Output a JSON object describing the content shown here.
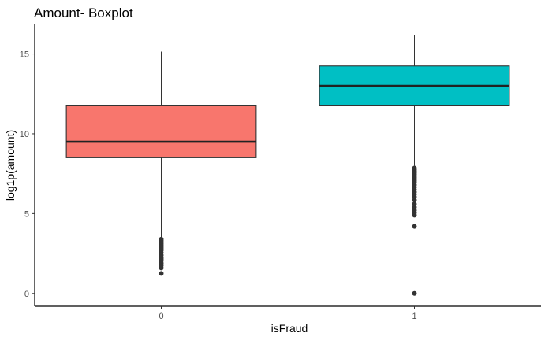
{
  "chart_data": {
    "type": "boxplot",
    "title": "Amount- Boxplot",
    "xlabel": "isFraud",
    "ylabel": "log1p(amount)",
    "categories": [
      "0",
      "1"
    ],
    "ylim": [
      -0.8,
      16.9
    ],
    "yticks": [
      0,
      5,
      10,
      15
    ],
    "grid": false,
    "legend": "none",
    "boxes": [
      {
        "category": "0",
        "whisker_low": 3.5,
        "q1": 8.5,
        "median": 9.5,
        "q3": 11.75,
        "whisker_high": 15.15,
        "color": "#F8766D",
        "outliers": [
          1.25,
          1.6,
          1.75,
          1.9,
          2.05,
          2.15,
          2.25,
          2.4,
          2.55,
          2.7,
          2.8,
          2.9,
          3.0,
          3.1,
          3.2,
          3.3,
          3.4
        ]
      },
      {
        "category": "1",
        "whisker_low": 8.0,
        "q1": 11.75,
        "median": 13.0,
        "q3": 14.25,
        "whisker_high": 16.2,
        "color": "#00BFC4",
        "outliers": [
          0.0,
          4.2,
          4.9,
          5.05,
          5.2,
          5.4,
          5.6,
          5.85,
          6.05,
          6.2,
          6.35,
          6.5,
          6.65,
          6.8,
          6.95,
          7.05,
          7.15,
          7.25,
          7.35,
          7.45,
          7.55,
          7.65,
          7.75,
          7.85
        ]
      }
    ]
  }
}
